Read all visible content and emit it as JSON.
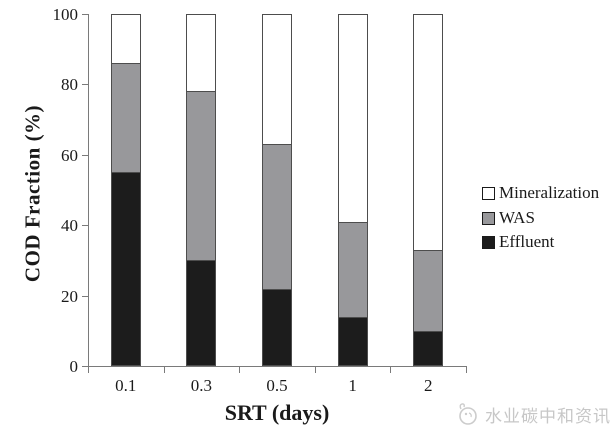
{
  "chart_data": {
    "type": "bar",
    "stacked": true,
    "title": "",
    "xlabel": "SRT (days)",
    "ylabel": "COD Fraction (%)",
    "categories": [
      "0.1",
      "0.3",
      "0.5",
      "1",
      "2"
    ],
    "series": [
      {
        "name": "Effluent",
        "color": "#1c1c1c",
        "values": [
          55,
          30,
          22,
          14,
          10
        ]
      },
      {
        "name": "WAS",
        "color": "#98989b",
        "values": [
          31,
          48,
          41,
          27,
          23
        ]
      },
      {
        "name": "Mineralization",
        "color": "#ffffff",
        "values": [
          14,
          22,
          37,
          59,
          67
        ]
      }
    ],
    "ylim": [
      0,
      100
    ],
    "yticks": [
      0,
      20,
      40,
      60,
      80,
      100
    ],
    "grid": false,
    "legend_position": "right",
    "legend_order": [
      "Mineralization",
      "WAS",
      "Effluent"
    ]
  },
  "colors": {
    "bar_border": "#4d4d4d",
    "axis": "#7a7a7a",
    "text": "#1a1a1a",
    "watermark": "#c7c7c7"
  },
  "watermark": {
    "text": "水业碳中和资讯"
  }
}
